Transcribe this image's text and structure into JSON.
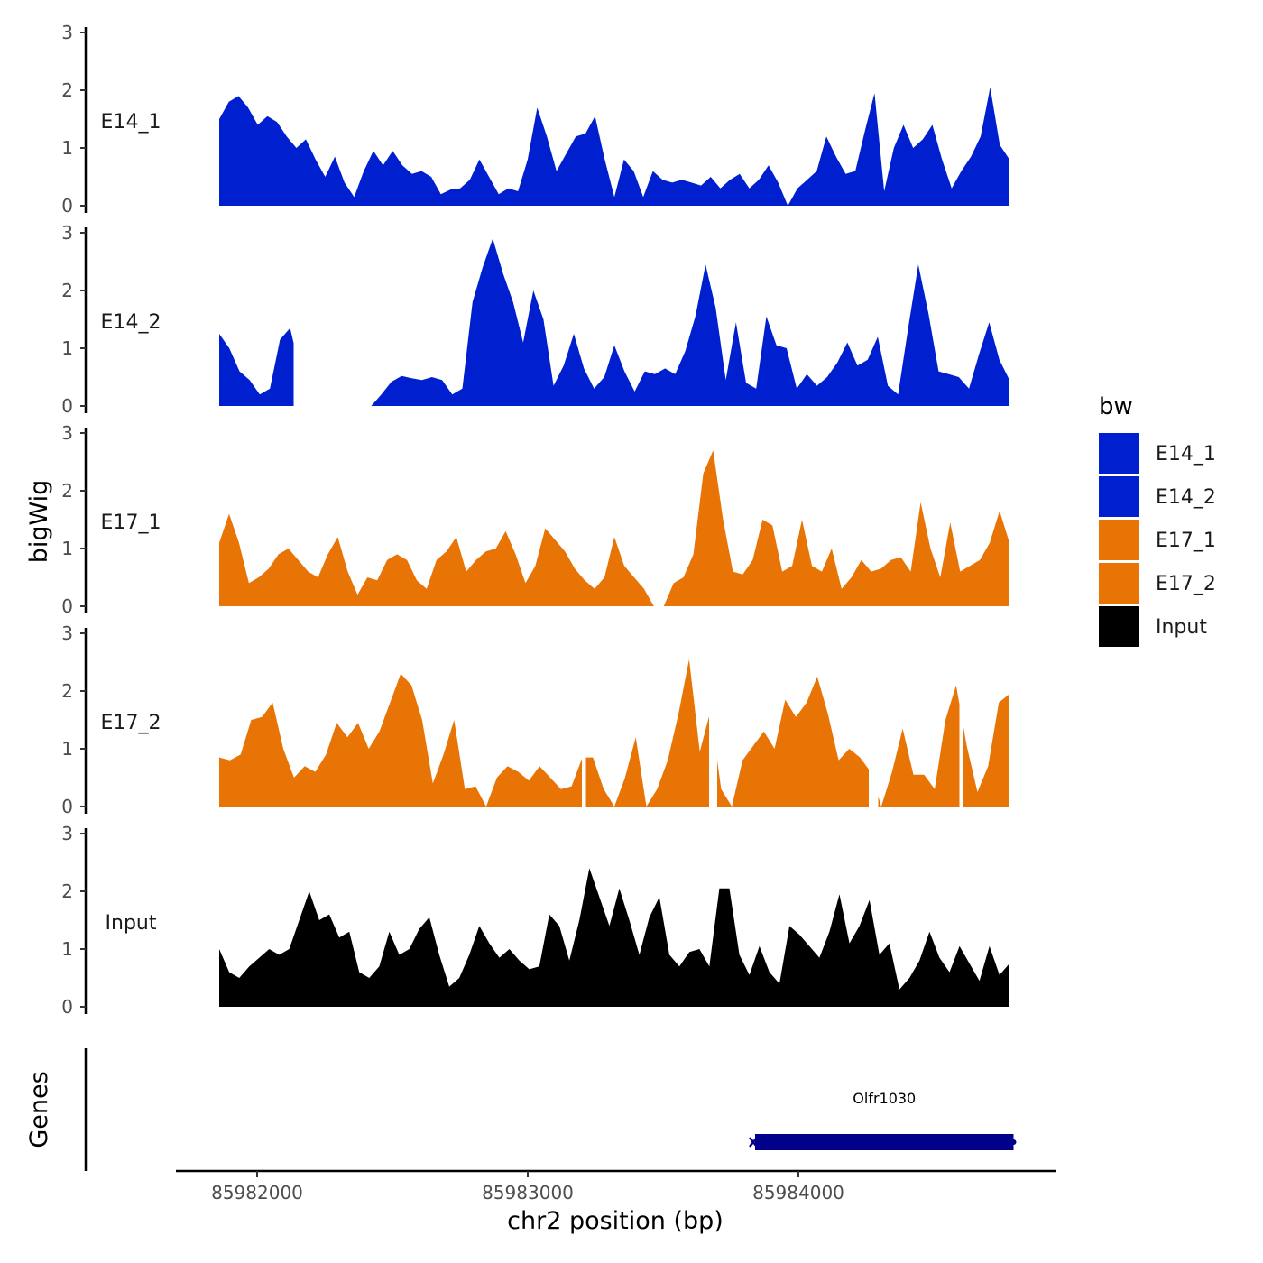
{
  "chart_data": {
    "type": "area",
    "ylabel": "bigWig",
    "xlabel": "chr2 position (bp)",
    "genes_label": "Genes",
    "ylim": [
      0,
      3
    ],
    "yticks": [
      "0",
      "1",
      "2",
      "3"
    ],
    "xlim": [
      85981700,
      85984950
    ],
    "xticks": [
      {
        "value": 85982000,
        "label": "85982000"
      },
      {
        "value": 85983000,
        "label": "85983000"
      },
      {
        "value": 85984000,
        "label": "85984000"
      }
    ],
    "track_range": [
      85981860,
      85984780
    ],
    "legend": {
      "title": "bw",
      "entries": [
        {
          "name": "E14_1",
          "color": "#0020D0"
        },
        {
          "name": "E14_2",
          "color": "#0020D0"
        },
        {
          "name": "E17_1",
          "color": "#E87405"
        },
        {
          "name": "E17_2",
          "color": "#E87405"
        },
        {
          "name": "Input",
          "color": "#000000"
        }
      ]
    },
    "series": [
      {
        "name": "E14_1",
        "color": "#0020D0",
        "values": [
          1.5,
          1.8,
          1.9,
          1.7,
          1.4,
          1.55,
          1.45,
          1.2,
          1.0,
          1.15,
          0.8,
          0.5,
          0.85,
          0.4,
          0.15,
          0.6,
          0.95,
          0.7,
          0.95,
          0.7,
          0.55,
          0.6,
          0.5,
          0.2,
          0.28,
          0.3,
          0.45,
          0.8,
          0.5,
          0.2,
          0.3,
          0.25,
          0.8,
          1.7,
          1.2,
          0.6,
          0.9,
          1.2,
          1.25,
          1.55,
          0.8,
          0.15,
          0.8,
          0.6,
          0.15,
          0.6,
          0.45,
          0.4,
          0.45,
          0.4,
          0.35,
          0.5,
          0.3,
          0.45,
          0.55,
          0.3,
          0.45,
          0.7,
          0.4,
          0.0,
          0.3,
          0.45,
          0.6,
          1.2,
          0.85,
          0.55,
          0.6,
          1.3,
          1.95,
          0.25,
          1.0,
          1.4,
          1.0,
          1.15,
          1.4,
          0.8,
          0.3,
          0.6,
          0.85,
          1.2,
          2.05,
          1.05,
          0.8
        ],
        "gaps": []
      },
      {
        "name": "E14_2",
        "color": "#0020D0",
        "values": [
          1.25,
          1.0,
          0.6,
          0.45,
          0.2,
          0.3,
          1.15,
          1.35,
          0.6,
          0.0,
          0.0,
          0.0,
          0.0,
          0.0,
          0.0,
          0.0,
          0.2,
          0.42,
          0.52,
          0.48,
          0.45,
          0.5,
          0.45,
          0.2,
          0.3,
          1.8,
          2.4,
          2.9,
          2.3,
          1.8,
          1.1,
          2.0,
          1.5,
          0.35,
          0.7,
          1.25,
          0.65,
          0.3,
          0.5,
          1.05,
          0.6,
          0.25,
          0.6,
          0.55,
          0.65,
          0.55,
          0.95,
          1.55,
          2.45,
          1.7,
          0.45,
          1.45,
          0.4,
          0.3,
          1.55,
          1.05,
          1.0,
          0.3,
          0.55,
          0.35,
          0.5,
          0.75,
          1.1,
          0.7,
          0.8,
          1.2,
          0.35,
          0.2,
          1.35,
          2.45,
          1.6,
          0.6,
          0.55,
          0.5,
          0.3,
          0.9,
          1.45,
          0.8,
          0.45
        ],
        "gaps": [
          [
            85982135,
            85982365
          ]
        ]
      },
      {
        "name": "E17_1",
        "color": "#E87405",
        "values": [
          1.1,
          1.6,
          1.1,
          0.4,
          0.5,
          0.65,
          0.9,
          1.0,
          0.8,
          0.6,
          0.5,
          0.9,
          1.2,
          0.6,
          0.2,
          0.5,
          0.45,
          0.8,
          0.9,
          0.8,
          0.45,
          0.3,
          0.8,
          0.95,
          1.2,
          0.6,
          0.8,
          0.95,
          1.0,
          1.3,
          0.9,
          0.4,
          0.7,
          1.35,
          1.15,
          0.95,
          0.65,
          0.45,
          0.3,
          0.5,
          1.2,
          0.7,
          0.5,
          0.3,
          0.0,
          0.0,
          0.4,
          0.5,
          0.9,
          2.3,
          2.7,
          1.5,
          0.6,
          0.55,
          0.8,
          1.5,
          1.4,
          0.6,
          0.7,
          1.5,
          0.7,
          0.6,
          1.0,
          0.3,
          0.5,
          0.8,
          0.6,
          0.65,
          0.8,
          0.85,
          0.6,
          1.8,
          1.0,
          0.5,
          1.45,
          0.6,
          0.7,
          0.8,
          1.1,
          1.65,
          1.1
        ],
        "gaps": []
      },
      {
        "name": "E17_2",
        "color": "#E87405",
        "values": [
          0.85,
          0.8,
          0.9,
          1.5,
          1.55,
          1.8,
          1.0,
          0.5,
          0.7,
          0.6,
          0.9,
          1.45,
          1.2,
          1.45,
          1.0,
          1.3,
          1.8,
          2.3,
          2.1,
          1.5,
          0.4,
          0.9,
          1.5,
          0.3,
          0.35,
          0.0,
          0.5,
          0.7,
          0.6,
          0.45,
          0.7,
          0.5,
          0.3,
          0.35,
          0.85,
          0.85,
          0.3,
          0.0,
          0.5,
          1.2,
          0.0,
          0.3,
          0.8,
          1.6,
          2.55,
          0.95,
          1.65,
          0.3,
          0.0,
          0.8,
          1.05,
          1.3,
          1.0,
          1.85,
          1.55,
          1.8,
          2.25,
          1.6,
          0.8,
          1.0,
          0.85,
          0.6,
          0.0,
          0.6,
          1.35,
          0.55,
          0.55,
          0.3,
          1.5,
          2.1,
          1.05,
          0.25,
          0.7,
          1.8,
          1.95
        ],
        "gaps": [
          [
            85983200,
            85983215
          ],
          [
            85983670,
            85983700
          ],
          [
            85984260,
            85984295
          ],
          [
            85984595,
            85984610
          ]
        ]
      },
      {
        "name": "Input",
        "color": "#000000",
        "values": [
          1.0,
          0.6,
          0.5,
          0.7,
          0.85,
          1.0,
          0.9,
          1.0,
          1.5,
          2.0,
          1.5,
          1.6,
          1.2,
          1.3,
          0.6,
          0.5,
          0.7,
          1.3,
          0.9,
          1.0,
          1.35,
          1.55,
          0.9,
          0.35,
          0.5,
          0.9,
          1.4,
          1.1,
          0.85,
          1.0,
          0.8,
          0.65,
          0.7,
          1.6,
          1.4,
          0.8,
          1.5,
          2.4,
          1.9,
          1.4,
          2.05,
          1.5,
          0.9,
          1.55,
          1.9,
          0.9,
          0.7,
          0.95,
          1.0,
          0.7,
          2.05,
          2.05,
          0.9,
          0.55,
          1.05,
          0.6,
          0.4,
          1.4,
          1.25,
          1.05,
          0.85,
          1.3,
          1.95,
          1.1,
          1.4,
          1.85,
          0.9,
          1.1,
          0.3,
          0.5,
          0.8,
          1.3,
          0.85,
          0.6,
          1.05,
          0.75,
          0.45,
          1.05,
          0.55,
          0.75
        ]
      }
    ],
    "genes": [
      {
        "name": "Olfr1030",
        "start": 85983840,
        "end": 85984795,
        "strand": "-",
        "color": "#00008B"
      }
    ]
  }
}
